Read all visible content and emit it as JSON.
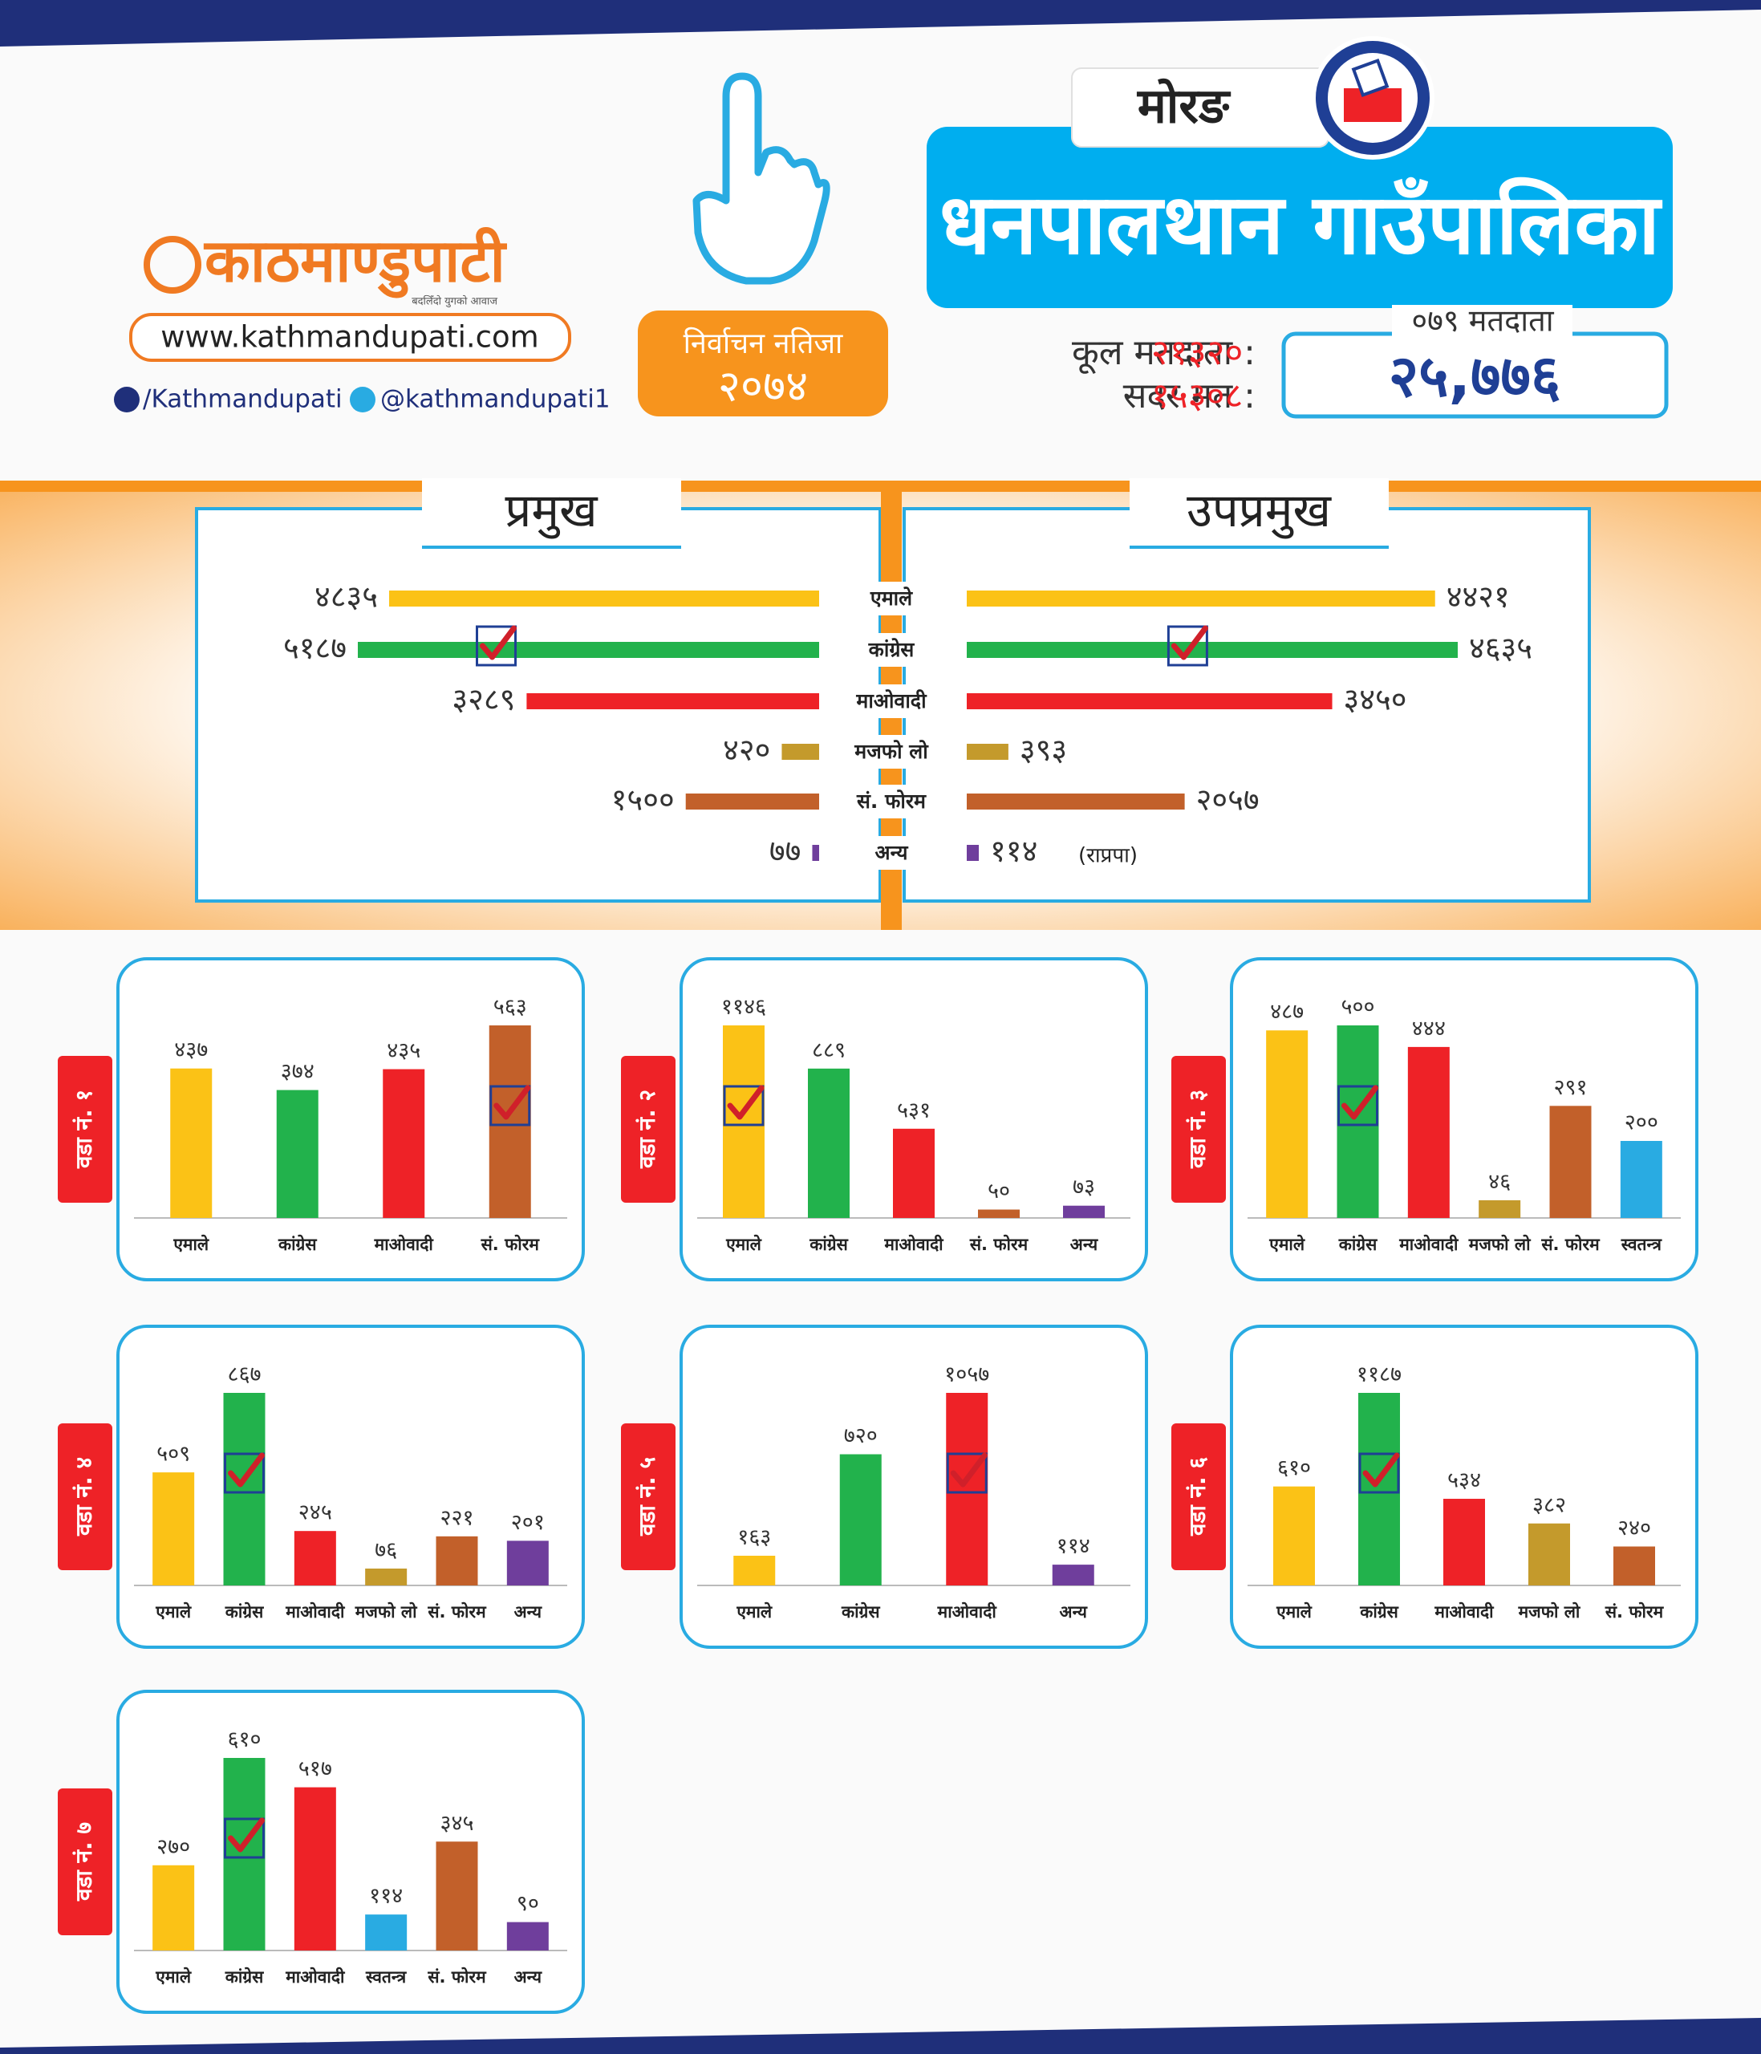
{
  "header": {
    "logo": "काठमाण्डुपाटी",
    "tagline": "बदलिँदो युगको आवाज",
    "website": "www.kathmandupati.com",
    "facebook": "/Kathmandupati",
    "twitter": "@kathmandupati1",
    "election_badge": "निर्वाचन नतिजा",
    "election_year": "२०७४",
    "district": "मोरङ",
    "municipality": "धनपालथान गाउँपालिका",
    "total_voters_label": "कूल मतदाता :",
    "total_voters": "२१३२०",
    "valid_votes_label": "सदर मत :",
    "valid_votes": "१५३०८",
    "voters_079_label": "०७९ मतदाता",
    "voters_079": "२५,७७६"
  },
  "chart_data": [
    {
      "type": "butterfly",
      "categories": [
        "एमाले",
        "कांग्रेस",
        "माओवादी",
        "मजफो लो",
        "सं. फोरम",
        "अन्य"
      ],
      "colors": [
        "#fbc216",
        "#22b24c",
        "#ee2227",
        "#c49a2c",
        "#c2602a",
        "#6f3e9c"
      ],
      "series": [
        {
          "name": "प्रमुख",
          "values": [
            4835,
            5187,
            3289,
            420,
            1500,
            77
          ],
          "value_labels": [
            "४८३५",
            "५१८७",
            "३२८९",
            "४२०",
            "१५००",
            "७७"
          ],
          "checked": 1
        },
        {
          "name": "उपप्रमुख",
          "values": [
            4421,
            4635,
            3450,
            393,
            2057,
            114
          ],
          "value_labels": [
            "४४२१",
            "४६३५",
            "३४५०",
            "३९३",
            "२०५७",
            "११४"
          ],
          "value_notes": [
            null,
            null,
            null,
            null,
            null,
            "(राप्रपा)"
          ],
          "checked": 1
        }
      ]
    },
    {
      "type": "bar",
      "title": "वडा नं. १",
      "categories": [
        "एमाले",
        "कांग्रेस",
        "माओवादी",
        "सं. फोरम"
      ],
      "colors": [
        "#fbc216",
        "#22b24c",
        "#ee2227",
        "#c2602a"
      ],
      "values": [
        437,
        374,
        435,
        563
      ],
      "value_labels": [
        "४३७",
        "३७४",
        "४३५",
        "५६३"
      ],
      "checked": 3
    },
    {
      "type": "bar",
      "title": "वडा नं. २",
      "categories": [
        "एमाले",
        "कांग्रेस",
        "माओवादी",
        "सं. फोरम",
        "अन्य"
      ],
      "colors": [
        "#fbc216",
        "#22b24c",
        "#ee2227",
        "#c2602a",
        "#6f3e9c"
      ],
      "values": [
        1146,
        889,
        531,
        50,
        73
      ],
      "value_labels": [
        "११४६",
        "८८९",
        "५३१",
        "५०",
        "७३"
      ],
      "checked": 0
    },
    {
      "type": "bar",
      "title": "वडा नं. ३",
      "categories": [
        "एमाले",
        "कांग्रेस",
        "माओवादी",
        "मजफो लो",
        "सं. फोरम",
        "स्वतन्त्र"
      ],
      "colors": [
        "#fbc216",
        "#22b24c",
        "#ee2227",
        "#c49a2c",
        "#c2602a",
        "#29abe2"
      ],
      "values": [
        487,
        500,
        444,
        46,
        291,
        200
      ],
      "value_labels": [
        "४८७",
        "५००",
        "४४४",
        "४६",
        "२९१",
        "२००"
      ],
      "checked": 1
    },
    {
      "type": "bar",
      "title": "वडा नं. ४",
      "categories": [
        "एमाले",
        "कांग्रेस",
        "माओवादी",
        "मजफो लो",
        "सं. फोरम",
        "अन्य"
      ],
      "colors": [
        "#fbc216",
        "#22b24c",
        "#ee2227",
        "#c49a2c",
        "#c2602a",
        "#6f3e9c"
      ],
      "values": [
        509,
        867,
        245,
        76,
        221,
        201
      ],
      "value_labels": [
        "५०९",
        "८६७",
        "२४५",
        "७६",
        "२२१",
        "२०१"
      ],
      "checked": 1
    },
    {
      "type": "bar",
      "title": "वडा नं. ५",
      "categories": [
        "एमाले",
        "कांग्रेस",
        "माओवादी",
        "अन्य"
      ],
      "colors": [
        "#fbc216",
        "#22b24c",
        "#ee2227",
        "#6f3e9c"
      ],
      "values": [
        163,
        720,
        1057,
        114
      ],
      "value_labels": [
        "१६३",
        "७२०",
        "१०५७",
        "११४"
      ],
      "checked": 2
    },
    {
      "type": "bar",
      "title": "वडा नं. ६",
      "categories": [
        "एमाले",
        "कांग्रेस",
        "माओवादी",
        "मजफो लो",
        "सं. फोरम"
      ],
      "colors": [
        "#fbc216",
        "#22b24c",
        "#ee2227",
        "#c49a2c",
        "#c2602a"
      ],
      "values": [
        610,
        1187,
        534,
        382,
        240
      ],
      "value_labels": [
        "६१०",
        "११८७",
        "५३४",
        "३८२",
        "२४०"
      ],
      "checked": 1
    },
    {
      "type": "bar",
      "title": "वडा नं. ७",
      "categories": [
        "एमाले",
        "कांग्रेस",
        "माओवादी",
        "स्वतन्त्र",
        "सं. फोरम",
        "अन्य"
      ],
      "colors": [
        "#fbc216",
        "#22b24c",
        "#ee2227",
        "#29abe2",
        "#c2602a",
        "#6f3e9c"
      ],
      "values": [
        270,
        610,
        517,
        114,
        345,
        90
      ],
      "value_labels": [
        "२७०",
        "६१०",
        "५१७",
        "११४",
        "३४५",
        "९०"
      ],
      "checked": 1
    }
  ]
}
